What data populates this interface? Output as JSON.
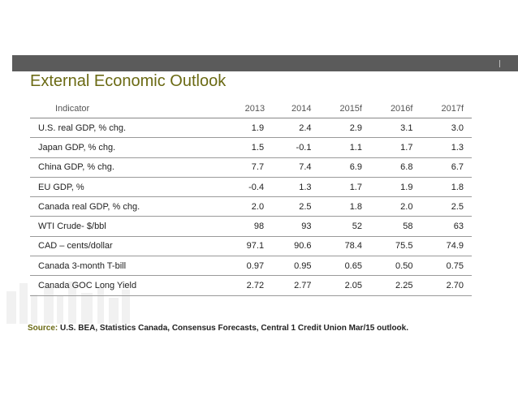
{
  "slide": {
    "title": "External Economic Outlook"
  },
  "table": {
    "headers": [
      "Indicator",
      "2013",
      "2014",
      "2015f",
      "2016f",
      "2017f"
    ],
    "rows": [
      {
        "label": "U.S. real GDP, % chg.",
        "values": [
          "1.9",
          "2.4",
          "2.9",
          "3.1",
          "3.0"
        ]
      },
      {
        "label": "Japan GDP, % chg.",
        "values": [
          "1.5",
          "-0.1",
          "1.1",
          "1.7",
          "1.3"
        ]
      },
      {
        "label": "China GDP, % chg.",
        "values": [
          "7.7",
          "7.4",
          "6.9",
          "6.8",
          "6.7"
        ]
      },
      {
        "label": "EU GDP, %",
        "values": [
          "-0.4",
          "1.3",
          "1.7",
          "1.9",
          "1.8"
        ]
      },
      {
        "label": "Canada real GDP, % chg.",
        "values": [
          "2.0",
          "2.5",
          "1.8",
          "2.0",
          "2.5"
        ]
      },
      {
        "label": "WTI Crude- $/bbl",
        "values": [
          "98",
          "93",
          "52",
          "58",
          "63"
        ]
      },
      {
        "label": "CAD – cents/dollar",
        "values": [
          "97.1",
          "90.6",
          "78.4",
          "75.5",
          "74.9"
        ]
      },
      {
        "label": "Canada 3-month T-bill",
        "values": [
          "0.97",
          "0.95",
          "0.65",
          "0.50",
          "0.75"
        ]
      },
      {
        "label": "Canada GOC Long Yield",
        "values": [
          "2.72",
          "2.77",
          "2.05",
          "2.25",
          "2.70"
        ]
      }
    ]
  },
  "source": {
    "label": "Source:",
    "text": " U.S. BEA, Statistics Canada, Consensus Forecasts, Central 1 Credit Union Mar/15 outlook."
  },
  "colors": {
    "title": "#6b6a14",
    "bar": "#5b5b5b",
    "source_label": "#6b6a14"
  }
}
